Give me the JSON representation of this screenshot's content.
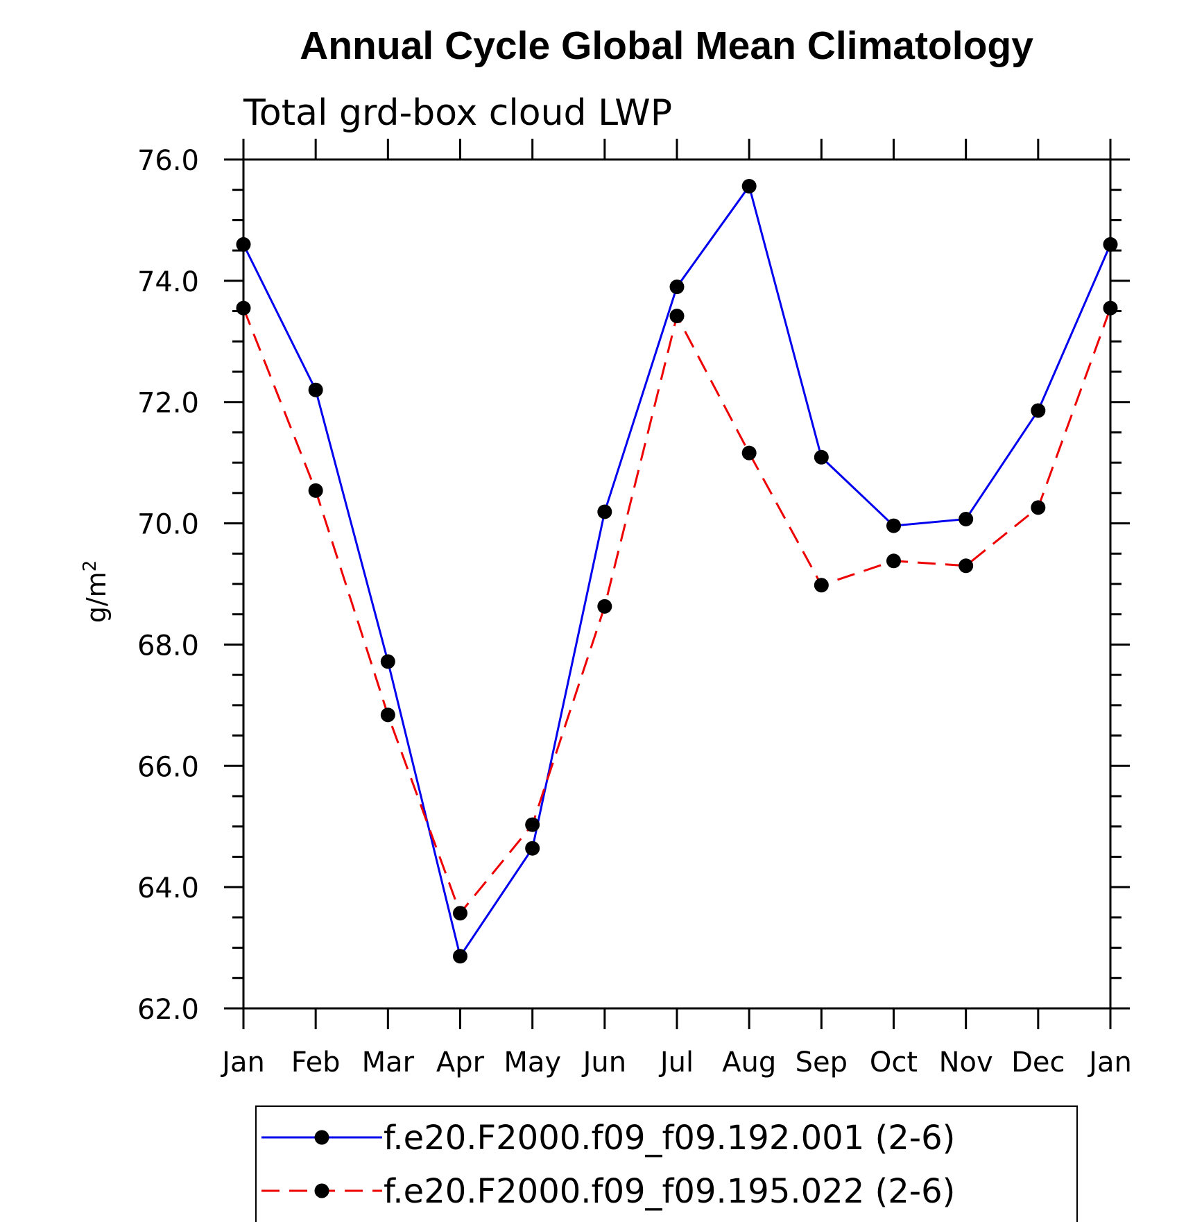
{
  "chart_data": {
    "type": "line",
    "title": "Annual Cycle Global Mean Climatology",
    "subtitle": "Total grd-box cloud LWP",
    "ylabel": "g/m",
    "ylabel_sup": "2",
    "xlabel": "",
    "categories": [
      "Jan",
      "Feb",
      "Mar",
      "Apr",
      "May",
      "Jun",
      "Jul",
      "Aug",
      "Sep",
      "Oct",
      "Nov",
      "Dec",
      "Jan"
    ],
    "ylim": [
      62.0,
      76.0
    ],
    "yticks": [
      "62.0",
      "64.0",
      "66.0",
      "68.0",
      "70.0",
      "72.0",
      "74.0",
      "76.0"
    ],
    "series": [
      {
        "name": "f.e20.F2000.f09_f09.192.001 (2-6)",
        "color": "#0000ee",
        "dash": "solid",
        "values": [
          74.6,
          72.2,
          67.72,
          62.86,
          64.64,
          70.19,
          73.9,
          75.56,
          71.09,
          69.96,
          70.07,
          71.86,
          74.6
        ]
      },
      {
        "name": "f.e20.F2000.f09_f09.195.022 (2-6)",
        "color": "#ee0000",
        "dash": "dashed",
        "values": [
          73.55,
          70.54,
          66.84,
          63.57,
          65.03,
          68.63,
          73.42,
          71.16,
          68.98,
          69.38,
          69.3,
          70.26,
          73.55
        ]
      }
    ],
    "legend_position": "bottom"
  }
}
